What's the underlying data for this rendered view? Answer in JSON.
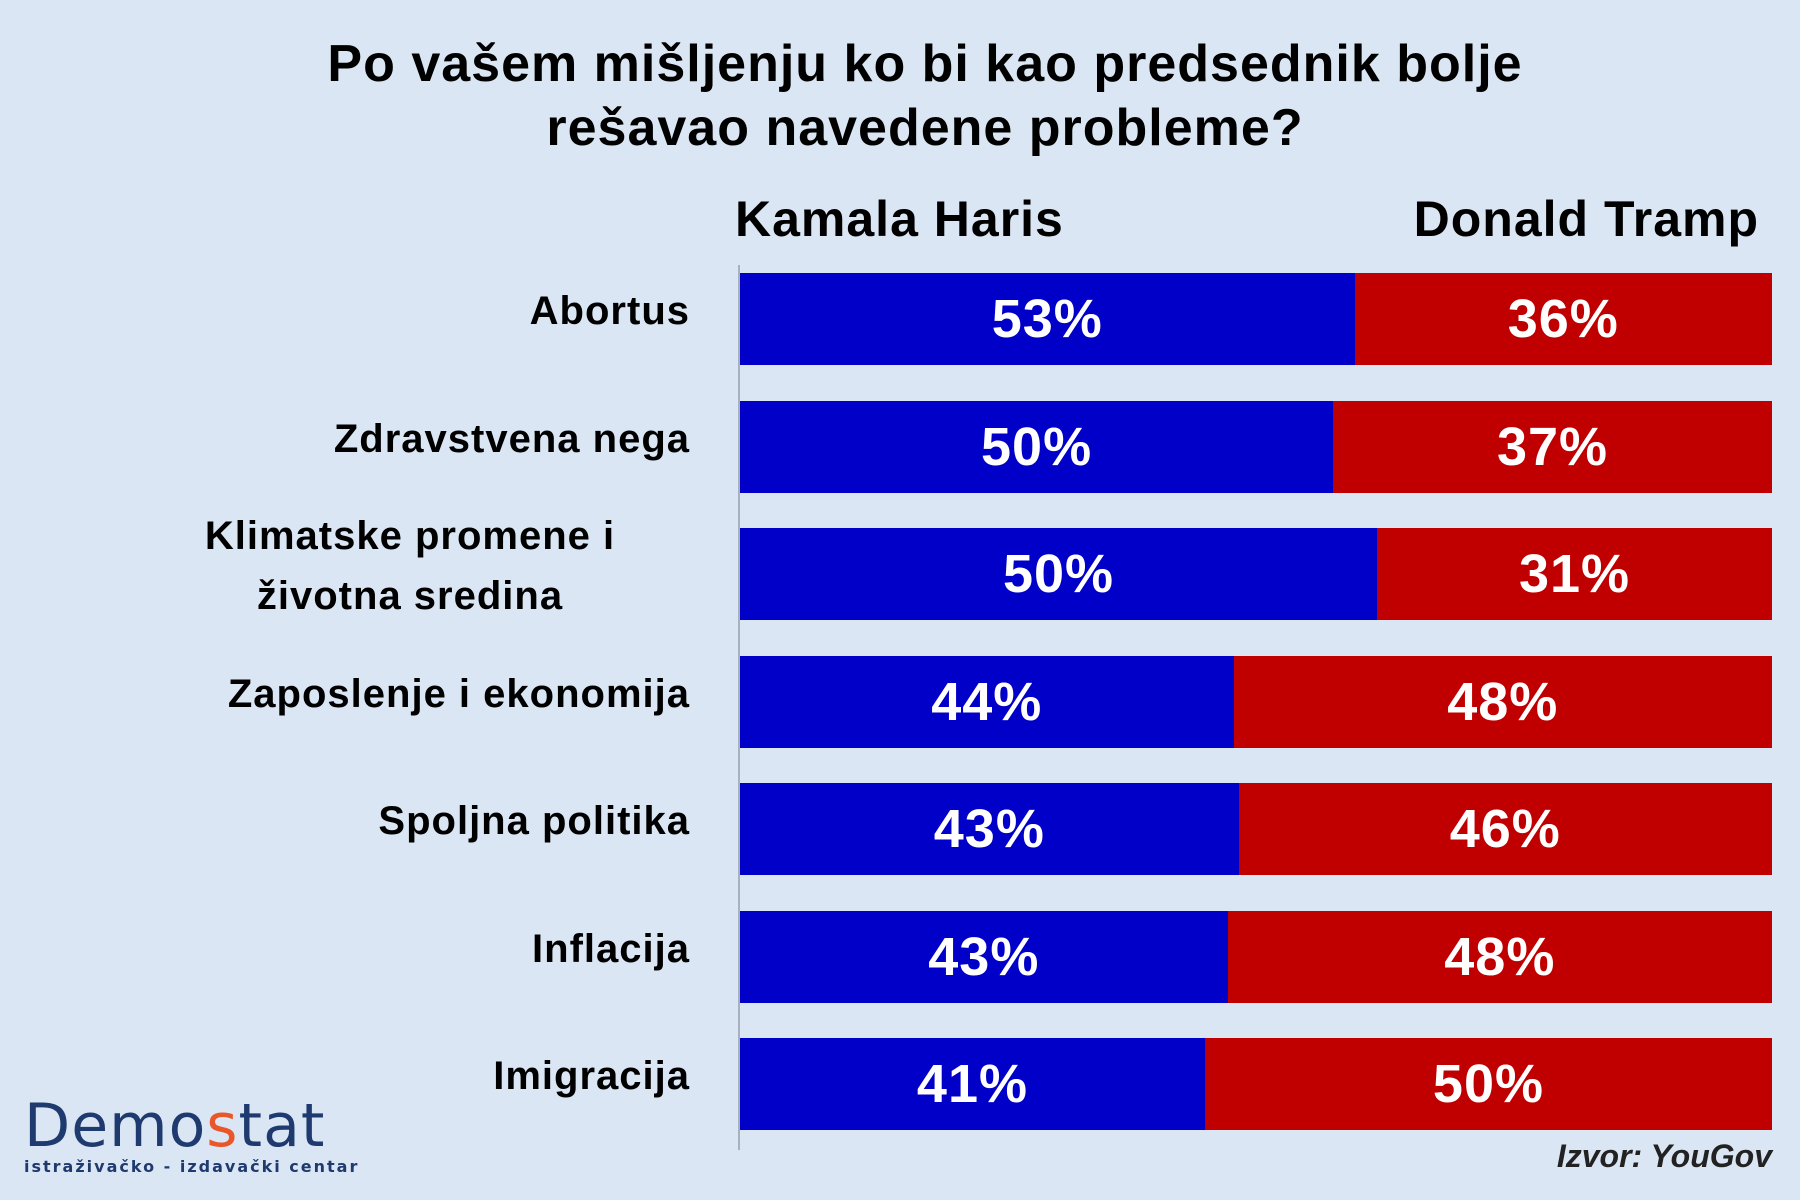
{
  "chart_data": {
    "type": "bar",
    "orientation": "horizontal",
    "stacked": true,
    "title": "Po vašem mišljenju ko bi kao predsednik bolje rešavao navedene probleme?",
    "title_lines": [
      "Po vašem mišljenju ko bi kao predsednik bolje",
      "rešavao navedene probleme?"
    ],
    "categories": [
      [
        "Abortus"
      ],
      [
        "Zdravstvena nega"
      ],
      [
        "Klimatske promene i",
        "životna sredina"
      ],
      [
        "Zaposlenje i ekonomija"
      ],
      [
        "Spoljna politika"
      ],
      [
        "Inflacija"
      ],
      [
        "Imigracija"
      ]
    ],
    "series": [
      {
        "name": "Kamala Haris",
        "color": "#0000c8",
        "values": [
          53,
          50,
          50,
          44,
          43,
          43,
          41
        ]
      },
      {
        "name": "Donald Tramp",
        "color": "#c00000",
        "values": [
          36,
          37,
          31,
          48,
          46,
          48,
          50
        ]
      }
    ],
    "value_suffix": "%",
    "xlabel": "",
    "ylabel": ""
  },
  "source": "Izvor: YouGov",
  "logo": {
    "part1": "Demo",
    "part2": "s",
    "part3": "tat",
    "subtitle": "istraživačko - izdavački  centar",
    "accent_color": "#e8562a",
    "brand_color": "#1e3a6e"
  }
}
